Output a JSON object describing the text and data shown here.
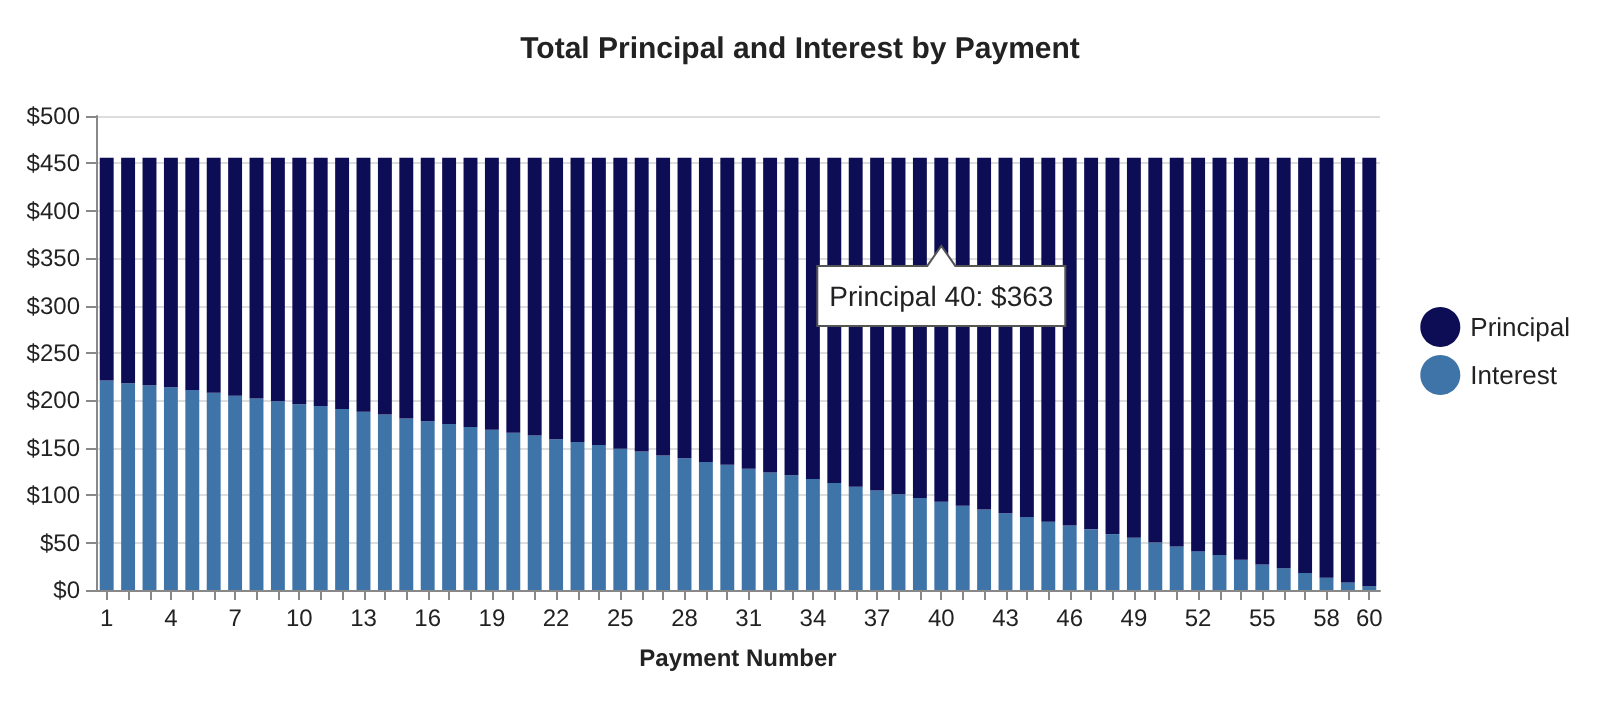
{
  "chart_data": {
    "type": "bar",
    "title": "Total Principal and Interest by Payment",
    "xlabel": "Payment Number",
    "categories": [
      "1",
      null,
      null,
      "4",
      null,
      null,
      "7",
      null,
      null,
      "10",
      null,
      null,
      "13",
      null,
      null,
      "16",
      null,
      null,
      "19",
      null,
      null,
      "22",
      null,
      null,
      "25",
      null,
      null,
      "28",
      null,
      null,
      "31",
      null,
      null,
      "34",
      null,
      null,
      "37",
      null,
      null,
      "40",
      null,
      null,
      "43",
      null,
      null,
      "46",
      null,
      null,
      "49",
      null,
      null,
      "52",
      null,
      null,
      "55",
      null,
      null,
      "58",
      null,
      "60"
    ],
    "series": [
      {
        "name": "Interest",
        "color": "#3f74a8",
        "values": [
          221,
          218,
          216,
          214,
          211,
          208,
          205,
          202,
          199,
          196,
          194,
          191,
          188,
          185,
          181,
          178,
          175,
          172,
          169,
          166,
          163,
          159,
          156,
          153,
          149,
          146,
          142,
          139,
          135,
          132,
          128,
          124,
          121,
          117,
          113,
          109,
          105,
          101,
          97,
          93,
          89,
          85,
          81,
          77,
          72,
          68,
          64,
          59,
          55,
          50,
          46,
          41,
          37,
          32,
          27,
          23,
          18,
          13,
          8,
          4
        ]
      },
      {
        "name": "Principal",
        "color": "#0d0d55",
        "values": [
          235,
          238,
          240,
          242,
          245,
          248,
          251,
          254,
          257,
          260,
          262,
          265,
          268,
          271,
          275,
          278,
          281,
          284,
          287,
          290,
          293,
          297,
          300,
          303,
          307,
          310,
          314,
          317,
          321,
          324,
          328,
          332,
          335,
          339,
          343,
          347,
          351,
          355,
          359,
          363,
          367,
          371,
          375,
          379,
          384,
          388,
          392,
          397,
          401,
          406,
          410,
          415,
          419,
          424,
          429,
          433,
          438,
          443,
          448,
          452
        ]
      }
    ],
    "stacked": true,
    "ylim": [
      0,
      500
    ],
    "yticks": [
      {
        "value": 0,
        "label": "$0"
      },
      {
        "value": 50,
        "label": "$50"
      },
      {
        "value": 100,
        "label": "$100"
      },
      {
        "value": 150,
        "label": "$150"
      },
      {
        "value": 200,
        "label": "$200"
      },
      {
        "value": 250,
        "label": "$250"
      },
      {
        "value": 300,
        "label": "$300"
      },
      {
        "value": 350,
        "label": "$350"
      },
      {
        "value": 400,
        "label": "$400"
      },
      {
        "value": 450,
        "label": "$450"
      },
      {
        "value": 500,
        "label": "$500"
      }
    ],
    "grid": "y",
    "legend": "right",
    "annotations": [
      {
        "text": "Principal 40: $363",
        "x": "40",
        "y": 363
      }
    ]
  }
}
